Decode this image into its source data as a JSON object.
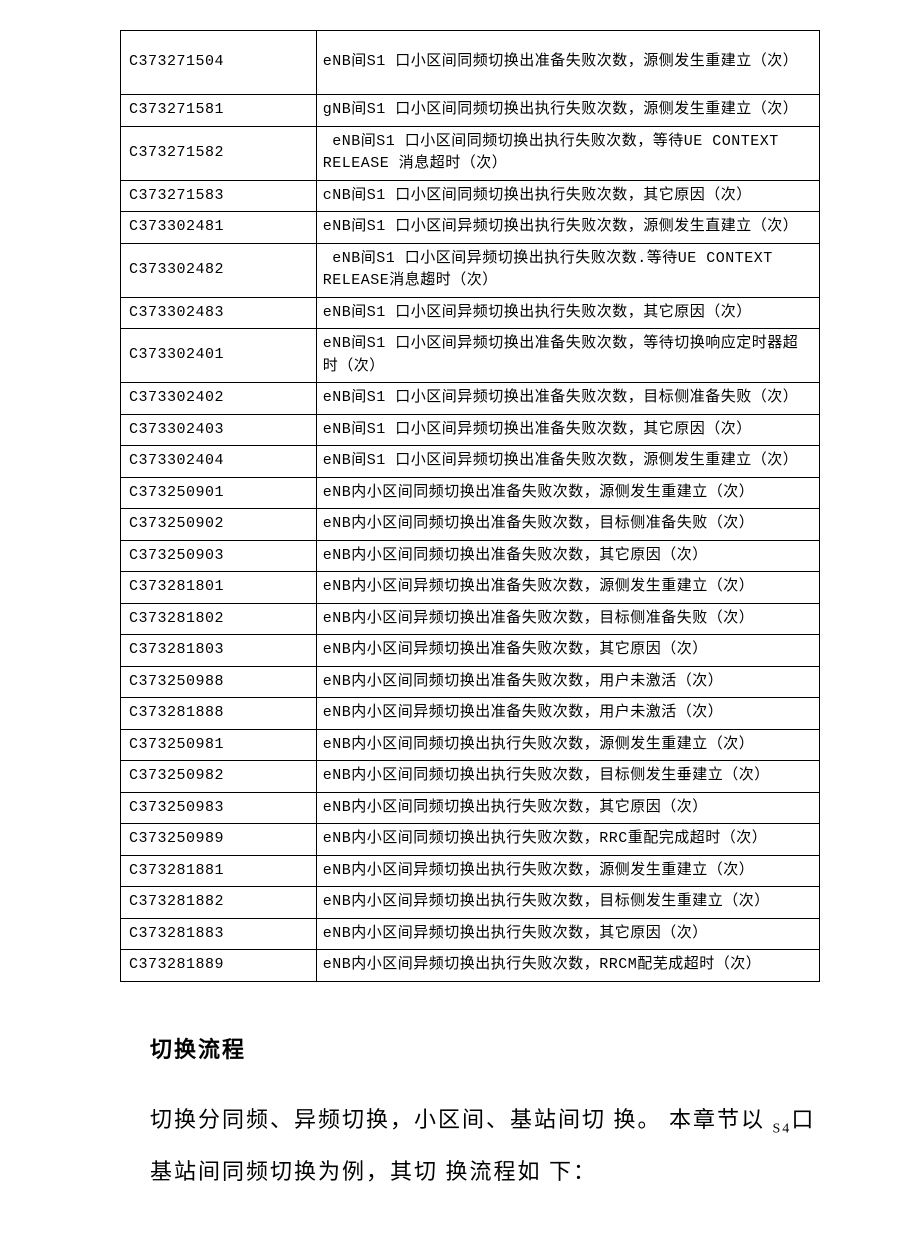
{
  "table": {
    "rows": [
      {
        "code": "C373271504",
        "desc": "eNB间S1 口小区间同频切换出准备失败次数，源侧发生重建立（次）",
        "tall": true
      },
      {
        "code": "C373271581",
        "desc": "gNB间S1 口小区间同频切换出执行失败次数，源侧发生重建立（次）"
      },
      {
        "code": "C373271582",
        "desc": " eNB间S1 口小区间同频切换出执行失败次数，等待UE CONTEXT RELEASE 消息超时（次）"
      },
      {
        "code": "C373271583",
        "desc": "cNB间S1 口小区间同频切换出执行失败次数，其它原因（次）"
      },
      {
        "code": "C373302481",
        "desc": "eNB间S1 口小区间异频切换出执行失败次数，源侧发生直建立（次）"
      },
      {
        "code": "C373302482",
        "desc": " eNB间S1 口小区间异频切换出执行失败次数.等待UE CONTEXT RELEASE消息趨时（次）"
      },
      {
        "code": "C373302483",
        "desc": "eNB间S1 口小区间异频切换出执行失败次数，其它原因（次）"
      },
      {
        "code": "C373302401",
        "desc": "eNB间S1 口小区间异频切换出准备失败次数，等待切换响应定时器超时（次）"
      },
      {
        "code": "C373302402",
        "desc": "eNB间S1 口小区间异频切换出准备失败次数，目标侧准备失败（次）"
      },
      {
        "code": "C373302403",
        "desc": "eNB间S1 口小区间异频切换出准备失败次数，其它原因（次）"
      },
      {
        "code": "C373302404",
        "desc": "eNB间S1 口小区间异频切换出准备失败次数，源侧发生重建立（次）"
      },
      {
        "code": "C373250901",
        "desc": "eNB内小区间同频切换出准备失败次数，源侧发生重建立（次）"
      },
      {
        "code": "C373250902",
        "desc": "eNB内小区间同频切换出准备失败次数，目标侧准备失败（次）"
      },
      {
        "code": "C373250903",
        "desc": "eNB内小区间同频切换出准备失败次数，其它原因（次）"
      },
      {
        "code": "C373281801",
        "desc": "eNB内小区间异频切换出准备失败次数，源侧发生重建立（次）"
      },
      {
        "code": "C373281802",
        "desc": "eNB内小区间异频切换出准备失败次数，目标侧准备失败（次）"
      },
      {
        "code": "C373281803",
        "desc": "eNB内小区间异频切换出准备失败次数，其它原因（次）"
      },
      {
        "code": "C373250988",
        "desc": "eNB内小区间同频切换出准备失败次数，用户未激活（次）"
      },
      {
        "code": "C373281888",
        "desc": "eNB内小区间异频切换出准备失败次数，用户未激活（次）"
      },
      {
        "code": "C373250981",
        "desc": "eNB内小区间同频切换出执行失败次数，源侧发生重建立（次）"
      },
      {
        "code": "C373250982",
        "desc": "eNB内小区间同频切换出执行失败次数，目标侧发生垂建立（次）"
      },
      {
        "code": "C373250983",
        "desc": "eNB内小区间同频切换出执行失败次数，其它原因（次）"
      },
      {
        "code": "C373250989",
        "desc": "eNB内小区间同频切换出执行失败次数，RRC重配完成超时（次）"
      },
      {
        "code": "C373281881",
        "desc": "eNB内小区间异频切换出执行失败次数，源侧发生重建立（次）"
      },
      {
        "code": "C373281882",
        "desc": "eNB内小区间异频切换出执行失败次数，目标侧发生重建立（次）"
      },
      {
        "code": "C373281883",
        "desc": "eNB内小区间异频切换出执行失败次数，其它原因（次）"
      },
      {
        "code": "C373281889",
        "desc": "eNB内小区间异频切换出执行失败次数，RRCM配芜成超时（次）"
      }
    ]
  },
  "heading": "切换流程",
  "paragraph_prefix": "切换分同频、异频切换，小区间、基站间切 换。 本章节以 ",
  "paragraph_sub": "S4",
  "paragraph_suffix": "口基站间同频切换为例，其切 换流程如 下："
}
